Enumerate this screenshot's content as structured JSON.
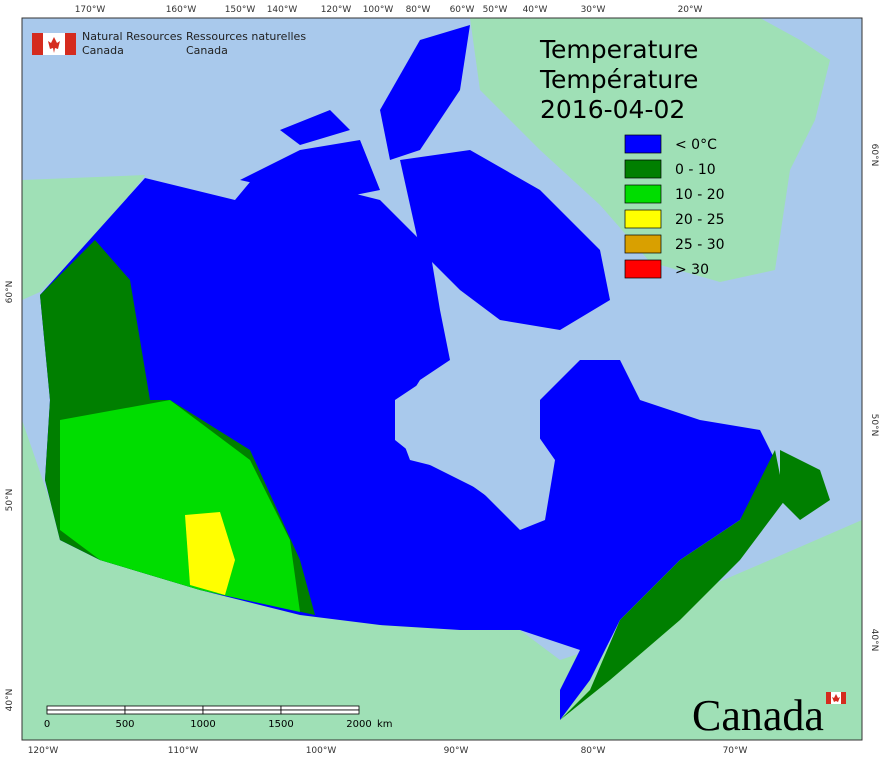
{
  "header": {
    "org_en_line1": "Natural Resources",
    "org_en_line2": "Canada",
    "org_fr_line1": "Ressources naturelles",
    "org_fr_line2": "Canada"
  },
  "title": {
    "en": "Temperature",
    "fr": "Température",
    "date": "2016-04-02"
  },
  "legend": [
    {
      "label": "< 0°C",
      "color": "#0000ff"
    },
    {
      "label": "0 - 10",
      "color": "#007f00"
    },
    {
      "label": "10 - 20",
      "color": "#00dd00"
    },
    {
      "label": "20 - 25",
      "color": "#ffff00"
    },
    {
      "label": "25 - 30",
      "color": "#d9a000"
    },
    {
      "label": "> 30",
      "color": "#ff0000"
    }
  ],
  "graticule": {
    "top": [
      "170°W",
      "160°W",
      "150°W",
      "140°W",
      "120°W",
      "100°W",
      "80°W",
      "60°W",
      "50°W",
      "40°W",
      "30°W",
      "20°W"
    ],
    "bottom": [
      "120°W",
      "110°W",
      "100°W",
      "90°W",
      "80°W",
      "70°W"
    ],
    "left": [
      "60°N",
      "50°N",
      "40°N"
    ],
    "right": [
      "60°N",
      "50°N",
      "40°N"
    ]
  },
  "scale_bar": {
    "labels": [
      "0",
      "500",
      "1000",
      "1500",
      "2000"
    ],
    "unit": "km"
  },
  "wordmark": "Canada"
}
